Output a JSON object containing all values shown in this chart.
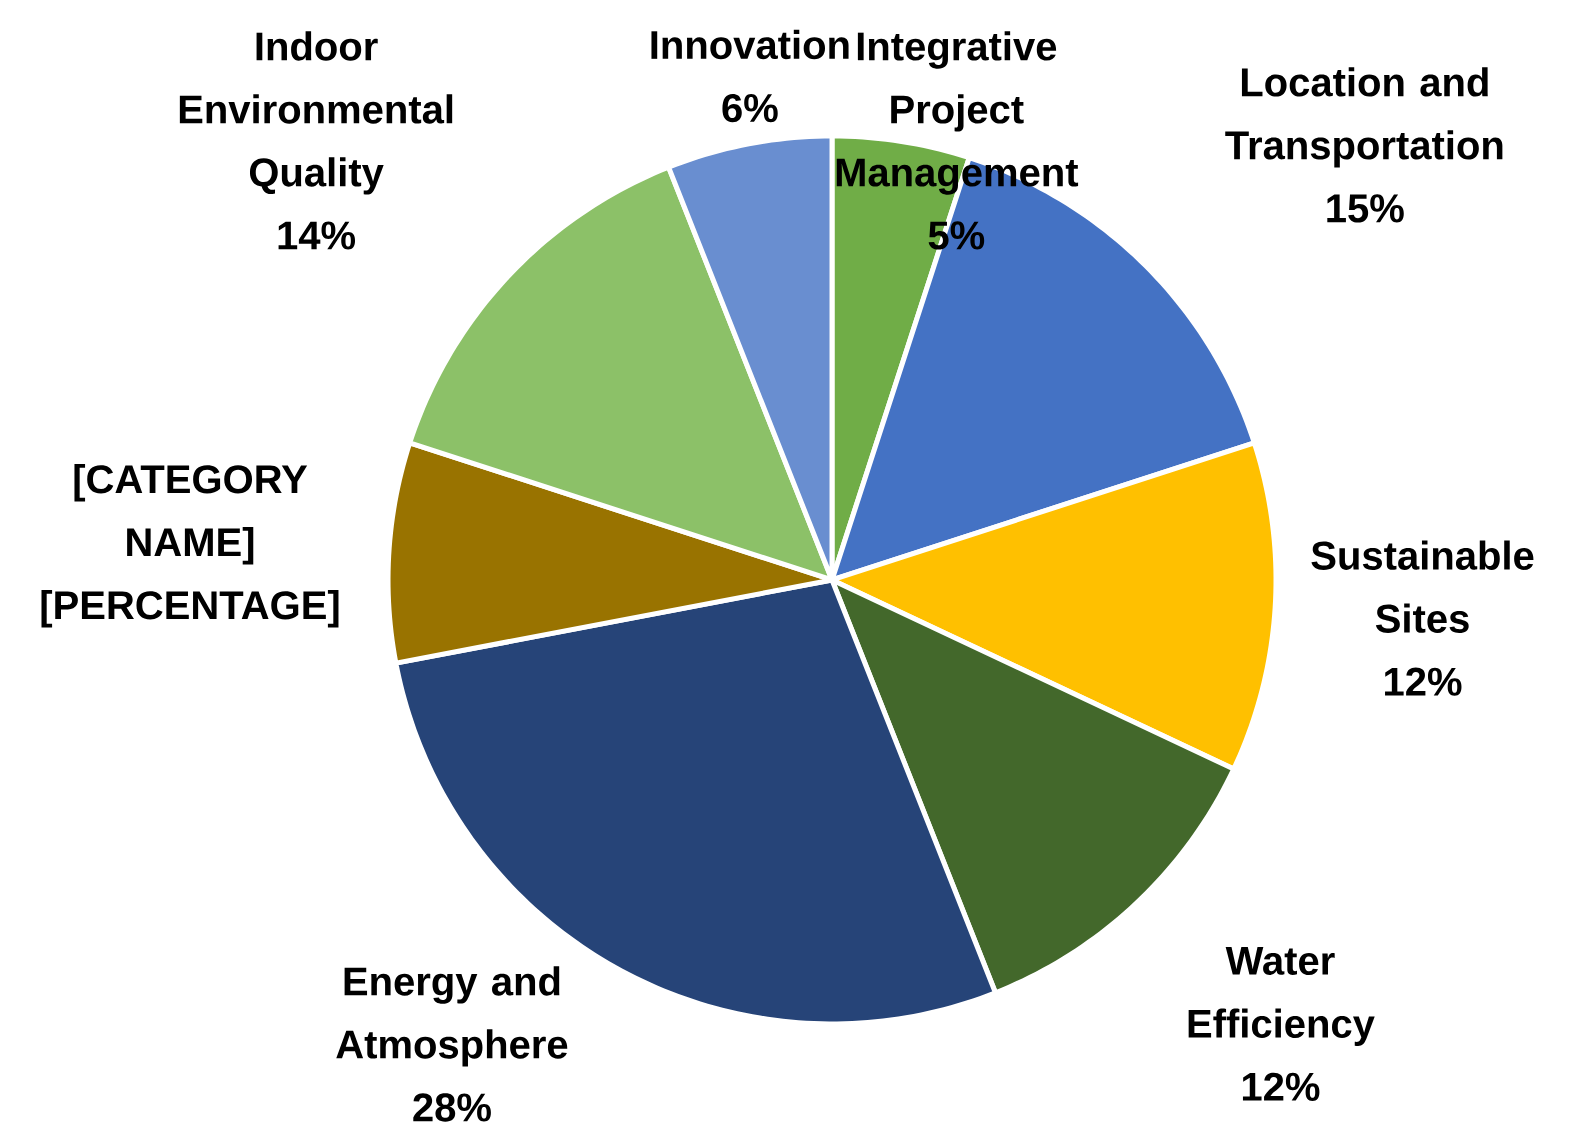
{
  "chart_data": {
    "type": "pie",
    "categories": [
      "Integrative Project Management",
      "Location and Transportation",
      "Sustainable Sites",
      "Water Efficiency",
      "Energy and Atmosphere",
      "[CATEGORY NAME]",
      "Indoor Environmental Quality",
      "Innovation"
    ],
    "values": [
      5,
      15,
      12,
      12,
      28,
      8,
      14,
      6
    ],
    "colors": [
      "#70ad47",
      "#4472c4",
      "#ffc000",
      "#43682b",
      "#264478",
      "#997300",
      "#8cc168",
      "#698ed0"
    ],
    "value_labels": [
      "5%",
      "15%",
      "12%",
      "12%",
      "28%",
      "[PERCENTAGE]",
      "14%",
      "6%"
    ]
  }
}
